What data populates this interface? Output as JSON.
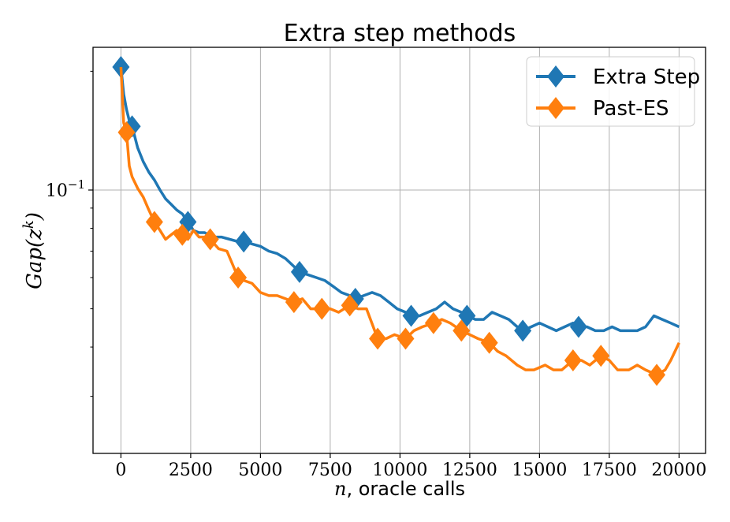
{
  "chart_data": {
    "type": "line",
    "title": "Extra step methods",
    "xlabel": "n, oracle calls",
    "xlabel_var": "n",
    "xlabel_rest": ", oracle calls",
    "ylabel": "Gap(z^k)",
    "ylabel_text": "Gap(z",
    "ylabel_sup": "k",
    "ylabel_close": ")",
    "yscale": "log",
    "xlim": [
      -1000,
      20950
    ],
    "ylim": [
      0.0215,
      0.23
    ],
    "xticks": [
      0,
      2500,
      5000,
      7500,
      10000,
      12500,
      15000,
      17500,
      20000
    ],
    "xtick_labels": [
      "0",
      "2500",
      "5000",
      "7500",
      "10000",
      "12500",
      "15000",
      "17500",
      "20000"
    ],
    "yticks": [
      0.1
    ],
    "ytick_label_base": "10",
    "ytick_label_exp": "−1",
    "grid": true,
    "legend_position": "top-right",
    "series": [
      {
        "name": "Extra Step",
        "color": "#1f77b4",
        "marker": "diamond",
        "x": [
          0,
          100,
          200,
          300,
          400,
          600,
          800,
          1000,
          1200,
          1400,
          1600,
          1800,
          2000,
          2200,
          2400,
          2600,
          2800,
          3000,
          3300,
          3600,
          3900,
          4200,
          4400,
          4700,
          5000,
          5300,
          5600,
          5900,
          6200,
          6400,
          6700,
          7000,
          7300,
          7600,
          7900,
          8200,
          8400,
          8700,
          9000,
          9300,
          9600,
          9900,
          10200,
          10400,
          10700,
          11000,
          11300,
          11600,
          11900,
          12200,
          12400,
          12700,
          13000,
          13300,
          13600,
          13900,
          14200,
          14400,
          14700,
          15000,
          15300,
          15600,
          15900,
          16200,
          16400,
          16700,
          17000,
          17300,
          17600,
          17900,
          18200,
          18500,
          18800,
          19100,
          19400,
          19700,
          20000
        ],
        "y": [
          0.205,
          0.175,
          0.16,
          0.15,
          0.145,
          0.128,
          0.118,
          0.111,
          0.106,
          0.1,
          0.095,
          0.092,
          0.089,
          0.087,
          0.083,
          0.079,
          0.078,
          0.078,
          0.076,
          0.076,
          0.075,
          0.074,
          0.074,
          0.073,
          0.072,
          0.07,
          0.069,
          0.067,
          0.064,
          0.062,
          0.061,
          0.06,
          0.059,
          0.057,
          0.055,
          0.054,
          0.053,
          0.054,
          0.055,
          0.054,
          0.052,
          0.05,
          0.049,
          0.048,
          0.048,
          0.049,
          0.05,
          0.052,
          0.05,
          0.049,
          0.048,
          0.047,
          0.047,
          0.049,
          0.048,
          0.047,
          0.045,
          0.044,
          0.045,
          0.046,
          0.045,
          0.044,
          0.045,
          0.046,
          0.045,
          0.045,
          0.044,
          0.044,
          0.045,
          0.044,
          0.044,
          0.044,
          0.045,
          0.048,
          0.047,
          0.046,
          0.045
        ],
        "markers_x": [
          0,
          400,
          2400,
          4400,
          6400,
          8400,
          10400,
          12400,
          14400,
          16400
        ],
        "markers_y": [
          0.205,
          0.145,
          0.083,
          0.074,
          0.062,
          0.053,
          0.048,
          0.048,
          0.044,
          0.045
        ]
      },
      {
        "name": "Past-ES",
        "color": "#ff7f0e",
        "marker": "diamond",
        "x": [
          0,
          100,
          200,
          300,
          400,
          600,
          800,
          1000,
          1200,
          1400,
          1600,
          1800,
          2000,
          2200,
          2400,
          2600,
          2800,
          3000,
          3200,
          3500,
          3800,
          4200,
          4400,
          4700,
          5000,
          5300,
          5600,
          5900,
          6200,
          6500,
          6800,
          7200,
          7500,
          7800,
          8200,
          8500,
          8800,
          9200,
          9500,
          9800,
          10200,
          10500,
          10800,
          11200,
          11500,
          11800,
          12200,
          12500,
          12800,
          13200,
          13500,
          13800,
          14200,
          14500,
          14800,
          15200,
          15500,
          15800,
          16200,
          16500,
          16800,
          17200,
          17500,
          17800,
          18200,
          18500,
          18800,
          19200,
          19500,
          19700,
          20000
        ],
        "y": [
          0.205,
          0.148,
          0.14,
          0.115,
          0.108,
          0.101,
          0.096,
          0.089,
          0.083,
          0.079,
          0.075,
          0.077,
          0.079,
          0.077,
          0.075,
          0.079,
          0.076,
          0.076,
          0.075,
          0.071,
          0.07,
          0.06,
          0.059,
          0.058,
          0.055,
          0.054,
          0.054,
          0.053,
          0.052,
          0.053,
          0.05,
          0.05,
          0.05,
          0.049,
          0.051,
          0.05,
          0.05,
          0.042,
          0.042,
          0.043,
          0.042,
          0.044,
          0.045,
          0.046,
          0.047,
          0.046,
          0.044,
          0.043,
          0.042,
          0.041,
          0.039,
          0.038,
          0.036,
          0.035,
          0.035,
          0.036,
          0.035,
          0.035,
          0.037,
          0.037,
          0.036,
          0.038,
          0.037,
          0.035,
          0.035,
          0.036,
          0.035,
          0.034,
          0.035,
          0.037,
          0.041
        ],
        "markers_x": [
          200,
          1200,
          2200,
          3200,
          4200,
          6200,
          7200,
          8200,
          9200,
          10200,
          11200,
          12200,
          13200,
          16200,
          17200,
          19200
        ],
        "markers_y": [
          0.14,
          0.083,
          0.077,
          0.075,
          0.06,
          0.052,
          0.05,
          0.051,
          0.042,
          0.042,
          0.046,
          0.044,
          0.041,
          0.037,
          0.038,
          0.034
        ]
      }
    ]
  }
}
